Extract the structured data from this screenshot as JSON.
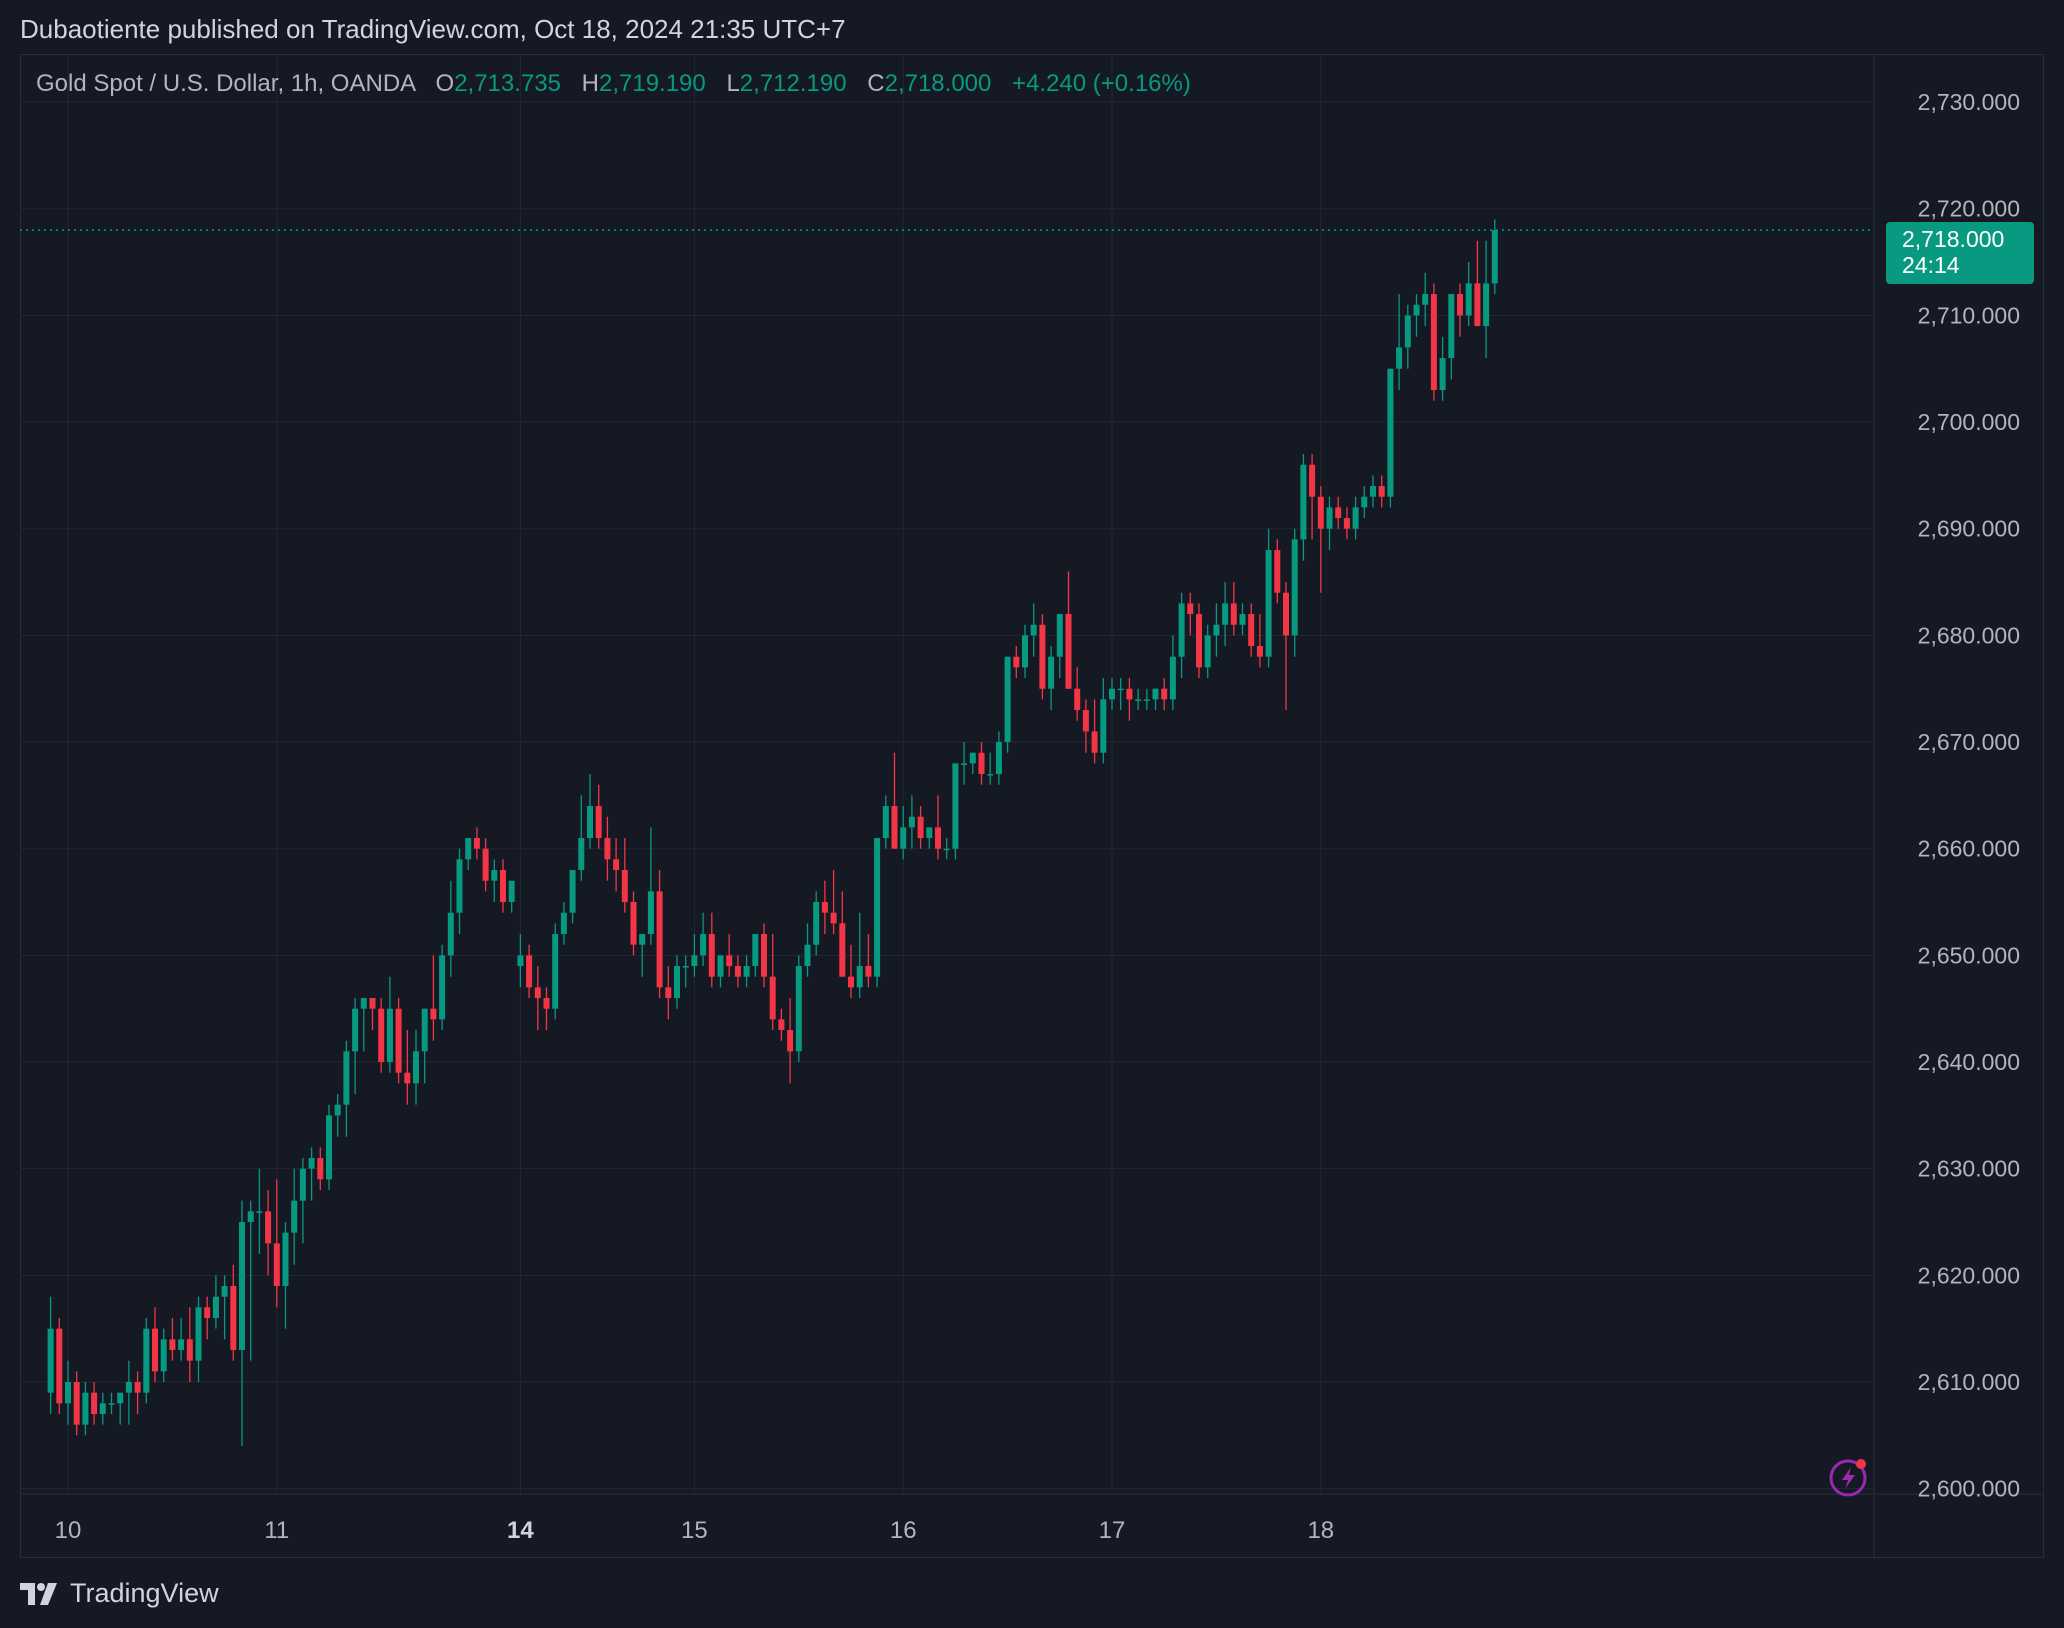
{
  "header": {
    "published": "Dubaotiente published on TradingView.com, Oct 18, 2024 21:35 UTC+7"
  },
  "legend": {
    "symbol": "Gold Spot / U.S. Dollar, 1h, OANDA",
    "o_label": "O",
    "o_value": "2,713.735",
    "h_label": "H",
    "h_value": "2,719.190",
    "l_label": "L",
    "l_value": "2,712.190",
    "c_label": "C",
    "c_value": "2,718.000",
    "change": "+4.240 (+0.16%)"
  },
  "price_tag": {
    "price": "2,718.000",
    "countdown": "24:14"
  },
  "brand": {
    "name": "TradingView",
    "logo_icon": "tradingview-logo-icon"
  },
  "colors": {
    "background": "#151924",
    "up": "#089981",
    "down": "#f23645",
    "grid": "#232733",
    "text": "#b2b5be"
  },
  "chart_data": {
    "type": "candlestick",
    "interval": "1h",
    "current_price": 2718.0,
    "ylim": [
      2599.5,
      2734.5
    ],
    "y_ticks": [
      {
        "value": 2730,
        "label": "2,730.000"
      },
      {
        "value": 2720,
        "label": "2,720.000"
      },
      {
        "value": 2710,
        "label": "2,710.000"
      },
      {
        "value": 2700,
        "label": "2,700.000"
      },
      {
        "value": 2690,
        "label": "2,690.000"
      },
      {
        "value": 2680,
        "label": "2,680.000"
      },
      {
        "value": 2670,
        "label": "2,670.000"
      },
      {
        "value": 2660,
        "label": "2,660.000"
      },
      {
        "value": 2650,
        "label": "2,650.000"
      },
      {
        "value": 2640,
        "label": "2,640.000"
      },
      {
        "value": 2630,
        "label": "2,630.000"
      },
      {
        "value": 2620,
        "label": "2,620.000"
      },
      {
        "value": 2610,
        "label": "2,610.000"
      },
      {
        "value": 2600,
        "label": "2,600.000"
      }
    ],
    "x_ticks": [
      {
        "index": 2,
        "label": "10",
        "bold": false
      },
      {
        "index": 26,
        "label": "11",
        "bold": false
      },
      {
        "index": 54,
        "label": "14",
        "bold": true
      },
      {
        "index": 74,
        "label": "15",
        "bold": false
      },
      {
        "index": 98,
        "label": "16",
        "bold": false
      },
      {
        "index": 122,
        "label": "17",
        "bold": false
      },
      {
        "index": 146,
        "label": "18",
        "bold": false
      }
    ],
    "grid": true,
    "candles_ohlc": [
      [
        2609,
        2618,
        2607,
        2615
      ],
      [
        2615,
        2616,
        2607,
        2608
      ],
      [
        2608,
        2612,
        2606,
        2610
      ],
      [
        2610,
        2611,
        2605,
        2606
      ],
      [
        2606,
        2610,
        2605,
        2609
      ],
      [
        2609,
        2610,
        2606,
        2607
      ],
      [
        2607,
        2609,
        2606,
        2608
      ],
      [
        2608,
        2609,
        2607,
        2608
      ],
      [
        2608,
        2609,
        2606,
        2609
      ],
      [
        2609,
        2612,
        2606,
        2610
      ],
      [
        2610,
        2611,
        2607,
        2609
      ],
      [
        2609,
        2616,
        2608,
        2615
      ],
      [
        2615,
        2617,
        2610,
        2611
      ],
      [
        2611,
        2615,
        2610,
        2614
      ],
      [
        2614,
        2616,
        2612,
        2613
      ],
      [
        2613,
        2616,
        2612,
        2614
      ],
      [
        2614,
        2617,
        2610,
        2612
      ],
      [
        2612,
        2618,
        2610,
        2617
      ],
      [
        2617,
        2618,
        2614,
        2616
      ],
      [
        2616,
        2620,
        2615,
        2618
      ],
      [
        2618,
        2620,
        2614,
        2619
      ],
      [
        2619,
        2621,
        2612,
        2613
      ],
      [
        2613,
        2627,
        2604,
        2625
      ],
      [
        2625,
        2627,
        2612,
        2626
      ],
      [
        2626,
        2630,
        2622,
        2626
      ],
      [
        2626,
        2628,
        2620,
        2623
      ],
      [
        2623,
        2629,
        2617,
        2619
      ],
      [
        2619,
        2625,
        2615,
        2624
      ],
      [
        2624,
        2630,
        2621,
        2627
      ],
      [
        2627,
        2631,
        2623,
        2630
      ],
      [
        2630,
        2632,
        2627,
        2631
      ],
      [
        2631,
        2632,
        2628,
        2629
      ],
      [
        2629,
        2636,
        2628,
        2635
      ],
      [
        2635,
        2637,
        2633,
        2636
      ],
      [
        2636,
        2642,
        2633,
        2641
      ],
      [
        2641,
        2646,
        2637,
        2645
      ],
      [
        2645,
        2646,
        2641,
        2646
      ],
      [
        2646,
        2646,
        2643,
        2645
      ],
      [
        2645,
        2646,
        2639,
        2640
      ],
      [
        2640,
        2648,
        2639,
        2645
      ],
      [
        2645,
        2646,
        2638,
        2639
      ],
      [
        2639,
        2643,
        2636,
        2638
      ],
      [
        2638,
        2643,
        2636,
        2641
      ],
      [
        2641,
        2645,
        2638,
        2645
      ],
      [
        2645,
        2650,
        2642,
        2644
      ],
      [
        2644,
        2651,
        2643,
        2650
      ],
      [
        2650,
        2657,
        2648,
        2654
      ],
      [
        2654,
        2660,
        2652,
        2659
      ],
      [
        2659,
        2661,
        2658,
        2661
      ],
      [
        2661,
        2662,
        2659,
        2660
      ],
      [
        2660,
        2661,
        2656,
        2657
      ],
      [
        2657,
        2659,
        2655,
        2658
      ],
      [
        2658,
        2659,
        2654,
        2655
      ],
      [
        2655,
        2657,
        2654,
        2657
      ],
      [
        2649,
        2652,
        2647,
        2650
      ],
      [
        2650,
        2651,
        2646,
        2647
      ],
      [
        2647,
        2649,
        2643,
        2646
      ],
      [
        2646,
        2647,
        2643,
        2645
      ],
      [
        2645,
        2653,
        2644,
        2652
      ],
      [
        2652,
        2655,
        2651,
        2654
      ],
      [
        2654,
        2658,
        2653,
        2658
      ],
      [
        2658,
        2665,
        2657,
        2661
      ],
      [
        2661,
        2667,
        2660,
        2664
      ],
      [
        2664,
        2666,
        2660,
        2661
      ],
      [
        2661,
        2663,
        2657,
        2659
      ],
      [
        2659,
        2661,
        2656,
        2658
      ],
      [
        2658,
        2661,
        2654,
        2655
      ],
      [
        2655,
        2656,
        2650,
        2651
      ],
      [
        2651,
        2652,
        2648,
        2652
      ],
      [
        2652,
        2662,
        2651,
        2656
      ],
      [
        2656,
        2658,
        2646,
        2647
      ],
      [
        2647,
        2649,
        2644,
        2646
      ],
      [
        2646,
        2650,
        2645,
        2649
      ],
      [
        2649,
        2650,
        2647,
        2649
      ],
      [
        2649,
        2652,
        2648,
        2650
      ],
      [
        2650,
        2654,
        2649,
        2652
      ],
      [
        2652,
        2654,
        2647,
        2648
      ],
      [
        2648,
        2650,
        2647,
        2650
      ],
      [
        2650,
        2652,
        2648,
        2649
      ],
      [
        2649,
        2650,
        2647,
        2648
      ],
      [
        2648,
        2650,
        2647,
        2649
      ],
      [
        2649,
        2652,
        2648,
        2652
      ],
      [
        2652,
        2653,
        2647,
        2648
      ],
      [
        2648,
        2652,
        2643,
        2644
      ],
      [
        2644,
        2645,
        2642,
        2643
      ],
      [
        2643,
        2646,
        2638,
        2641
      ],
      [
        2641,
        2650,
        2640,
        2649
      ],
      [
        2649,
        2653,
        2648,
        2651
      ],
      [
        2651,
        2656,
        2650,
        2655
      ],
      [
        2655,
        2657,
        2652,
        2654
      ],
      [
        2654,
        2658,
        2652,
        2653
      ],
      [
        2653,
        2656,
        2648,
        2648
      ],
      [
        2648,
        2651,
        2646,
        2647
      ],
      [
        2647,
        2654,
        2646,
        2649
      ],
      [
        2649,
        2652,
        2647,
        2648
      ],
      [
        2648,
        2661,
        2647,
        2661
      ],
      [
        2661,
        2665,
        2660,
        2664
      ],
      [
        2664,
        2669,
        2660,
        2660
      ],
      [
        2660,
        2664,
        2659,
        2662
      ],
      [
        2662,
        2665,
        2660,
        2663
      ],
      [
        2663,
        2664,
        2660,
        2661
      ],
      [
        2661,
        2662,
        2660,
        2662
      ],
      [
        2662,
        2665,
        2659,
        2660
      ],
      [
        2660,
        2661,
        2659,
        2660
      ],
      [
        2660,
        2668,
        2659,
        2668
      ],
      [
        2668,
        2670,
        2666,
        2668
      ],
      [
        2668,
        2669,
        2667,
        2669
      ],
      [
        2669,
        2670,
        2666,
        2667
      ],
      [
        2667,
        2669,
        2666,
        2667
      ],
      [
        2667,
        2671,
        2666,
        2670
      ],
      [
        2670,
        2678,
        2669,
        2678
      ],
      [
        2678,
        2679,
        2676,
        2677
      ],
      [
        2677,
        2681,
        2676,
        2680
      ],
      [
        2680,
        2683,
        2678,
        2681
      ],
      [
        2681,
        2682,
        2674,
        2675
      ],
      [
        2675,
        2679,
        2673,
        2678
      ],
      [
        2678,
        2682,
        2676,
        2682
      ],
      [
        2682,
        2686,
        2675,
        2675
      ],
      [
        2675,
        2677,
        2672,
        2673
      ],
      [
        2673,
        2674,
        2669,
        2671
      ],
      [
        2671,
        2674,
        2668,
        2669
      ],
      [
        2669,
        2676,
        2668,
        2674
      ],
      [
        2674,
        2676,
        2673,
        2675
      ],
      [
        2675,
        2676,
        2673,
        2675
      ],
      [
        2675,
        2676,
        2672,
        2674
      ],
      [
        2674,
        2675,
        2673,
        2674
      ],
      [
        2674,
        2675,
        2673,
        2674
      ],
      [
        2674,
        2675,
        2673,
        2675
      ],
      [
        2675,
        2676,
        2673,
        2674
      ],
      [
        2674,
        2680,
        2673,
        2678
      ],
      [
        2678,
        2684,
        2676,
        2683
      ],
      [
        2683,
        2684,
        2680,
        2682
      ],
      [
        2682,
        2683,
        2676,
        2677
      ],
      [
        2677,
        2681,
        2676,
        2680
      ],
      [
        2680,
        2683,
        2678,
        2681
      ],
      [
        2681,
        2685,
        2679,
        2683
      ],
      [
        2683,
        2685,
        2680,
        2681
      ],
      [
        2681,
        2683,
        2680,
        2682
      ],
      [
        2682,
        2683,
        2678,
        2679
      ],
      [
        2679,
        2682,
        2677,
        2678
      ],
      [
        2678,
        2690,
        2677,
        2688
      ],
      [
        2688,
        2689,
        2683,
        2684
      ],
      [
        2684,
        2685,
        2673,
        2680
      ],
      [
        2680,
        2690,
        2678,
        2689
      ],
      [
        2689,
        2697,
        2687,
        2696
      ],
      [
        2696,
        2697,
        2689,
        2693
      ],
      [
        2693,
        2694,
        2684,
        2690
      ],
      [
        2690,
        2693,
        2688,
        2692
      ],
      [
        2692,
        2693,
        2690,
        2691
      ],
      [
        2691,
        2692,
        2689,
        2690
      ],
      [
        2690,
        2693,
        2689,
        2692
      ],
      [
        2692,
        2694,
        2691,
        2693
      ],
      [
        2693,
        2695,
        2692,
        2694
      ],
      [
        2694,
        2695,
        2692,
        2693
      ],
      [
        2693,
        2705,
        2692,
        2705
      ],
      [
        2705,
        2712,
        2703,
        2707
      ],
      [
        2707,
        2711,
        2705,
        2710
      ],
      [
        2710,
        2712,
        2708,
        2711
      ],
      [
        2711,
        2714,
        2709,
        2712
      ],
      [
        2712,
        2713,
        2702,
        2703
      ],
      [
        2703,
        2708,
        2702,
        2706
      ],
      [
        2706,
        2711,
        2704,
        2712
      ],
      [
        2712,
        2713,
        2708,
        2710
      ],
      [
        2710,
        2715,
        2709,
        2713
      ],
      [
        2713,
        2717,
        2709,
        2709
      ],
      [
        2709,
        2717,
        2706,
        2713
      ],
      [
        2713,
        2719,
        2712,
        2718
      ]
    ]
  }
}
